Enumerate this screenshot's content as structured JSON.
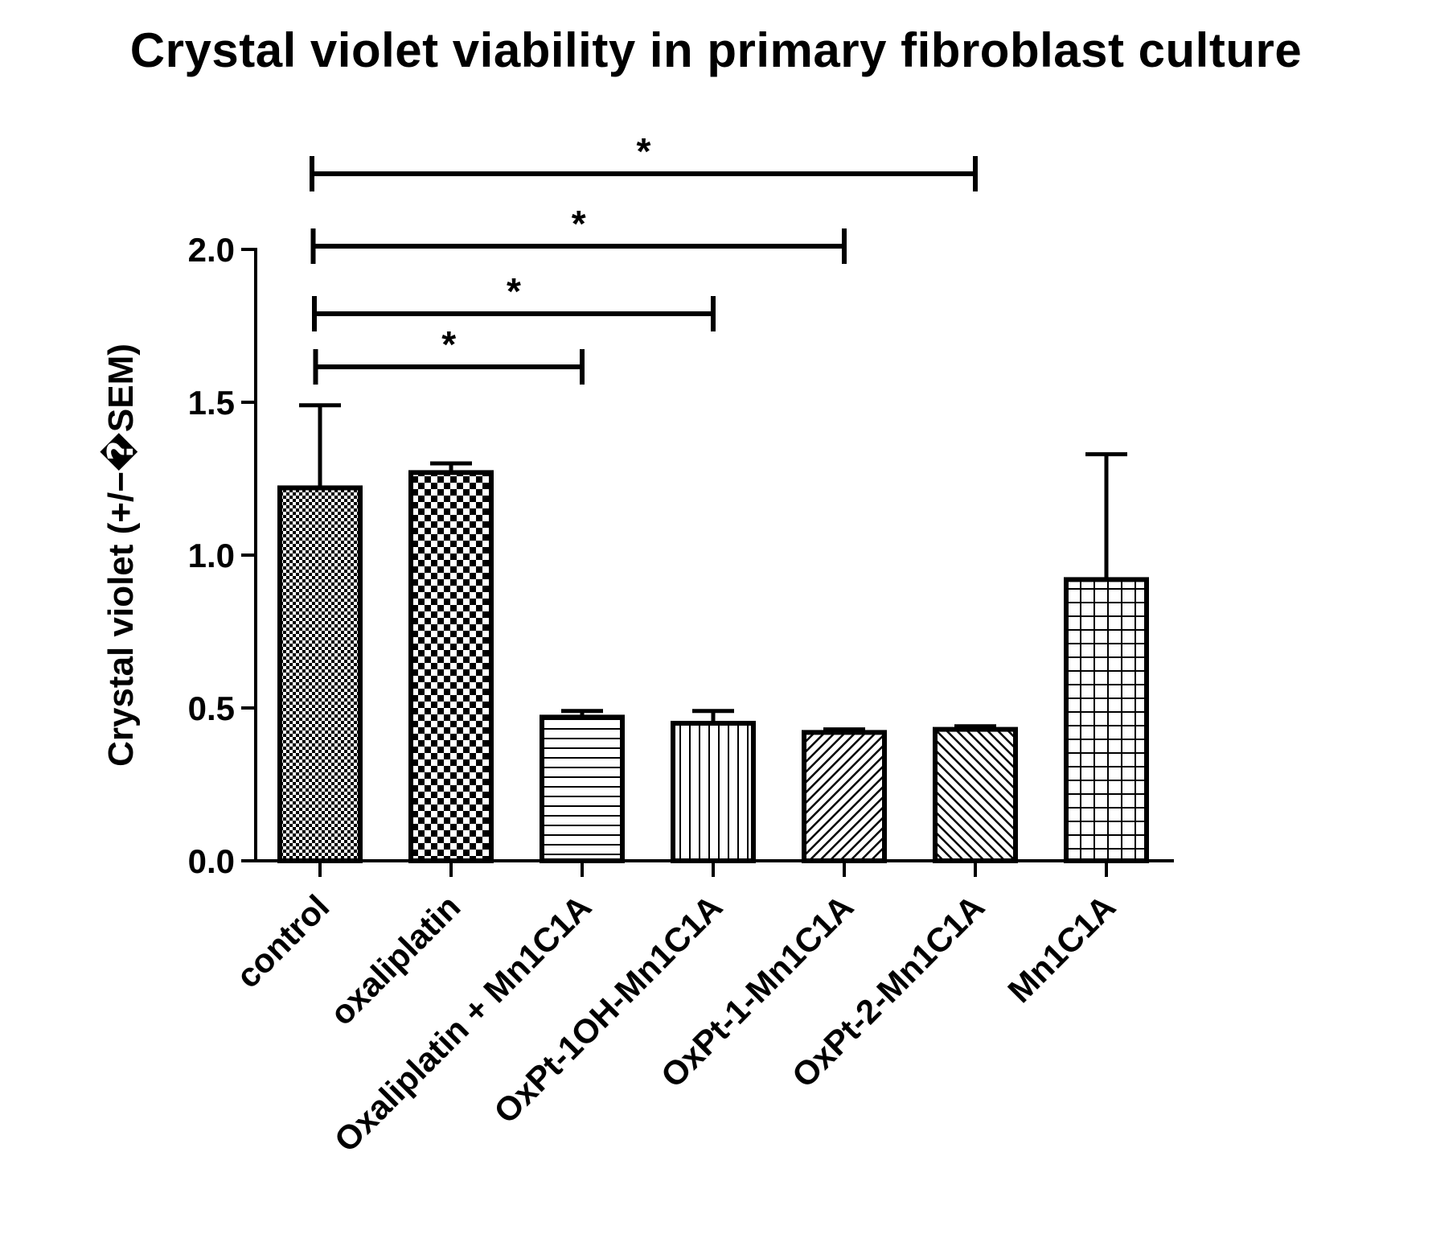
{
  "chart_data": {
    "type": "bar",
    "title": "Crystal violet viability in primary fibroblast culture",
    "ylabel": "Crystal violet (+/−�SEM)",
    "xlabel": "",
    "ylim": [
      0,
      2.0
    ],
    "yticks": [
      "0.0",
      "0.5",
      "1.0",
      "1.5",
      "2.0"
    ],
    "categories": [
      "control",
      "oxaliplatin",
      "Oxaliplatin + Mn1C1A",
      "OxPt-1OH-Mn1C1A",
      "OxPt-1-Mn1C1A",
      "OxPt-2-Mn1C1A",
      "Mn1C1A"
    ],
    "values": [
      1.22,
      1.27,
      0.47,
      0.45,
      0.42,
      0.43,
      0.92
    ],
    "errors": [
      0.27,
      0.03,
      0.02,
      0.04,
      0.01,
      0.01,
      0.41
    ],
    "patterns": [
      "dense-checker",
      "checker",
      "horizontal-lines",
      "vertical-lines",
      "diagonal-up",
      "diagonal-down",
      "grid"
    ],
    "grid": false,
    "significance": [
      {
        "from": "control",
        "to": "Oxaliplatin + Mn1C1A",
        "label": "*"
      },
      {
        "from": "control",
        "to": "OxPt-1OH-Mn1C1A",
        "label": "*"
      },
      {
        "from": "control",
        "to": "OxPt-1-Mn1C1A",
        "label": "*"
      },
      {
        "from": "control",
        "to": "OxPt-2-Mn1C1A",
        "label": "*"
      }
    ]
  }
}
